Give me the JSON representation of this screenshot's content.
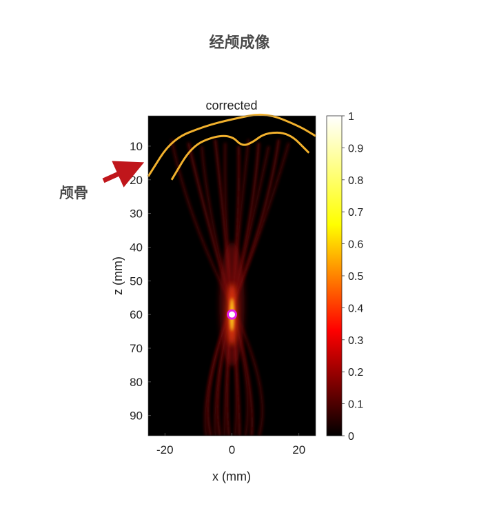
{
  "page": {
    "title": "经颅成像",
    "annotation_label": "颅骨"
  },
  "colors": {
    "skull_outline": "#f2b12d",
    "arrow": "#c0161b",
    "focus_marker": "#e61ee6",
    "background": "#000000"
  },
  "chart_data": {
    "type": "heatmap",
    "title": "corrected",
    "xlabel": "x (mm)",
    "ylabel": "z (mm)",
    "xlim": [
      -25,
      25
    ],
    "ylim": [
      1,
      96
    ],
    "y_reversed": true,
    "x_ticks": [
      -20,
      0,
      20
    ],
    "y_ticks": [
      10,
      20,
      30,
      40,
      50,
      60,
      70,
      80,
      90
    ],
    "colormap": "hot",
    "colorbar": {
      "min": 0,
      "max": 1,
      "ticks": [
        0,
        0.1,
        0.2,
        0.3,
        0.4,
        0.5,
        0.6,
        0.7,
        0.8,
        0.9,
        1
      ]
    },
    "focus": {
      "x": 0,
      "z": 60
    },
    "skull_outer_curve": [
      [
        -25,
        19
      ],
      [
        -18,
        8
      ],
      [
        -8,
        4
      ],
      [
        0,
        2
      ],
      [
        10,
        0
      ],
      [
        20,
        4
      ],
      [
        25,
        7
      ]
    ],
    "skull_inner_curve": [
      [
        -18,
        20
      ],
      [
        -12,
        10
      ],
      [
        -5,
        7
      ],
      [
        0,
        7
      ],
      [
        3,
        10
      ],
      [
        6,
        9
      ],
      [
        10,
        6
      ],
      [
        17,
        6
      ],
      [
        23,
        12
      ]
    ],
    "grid": false
  }
}
